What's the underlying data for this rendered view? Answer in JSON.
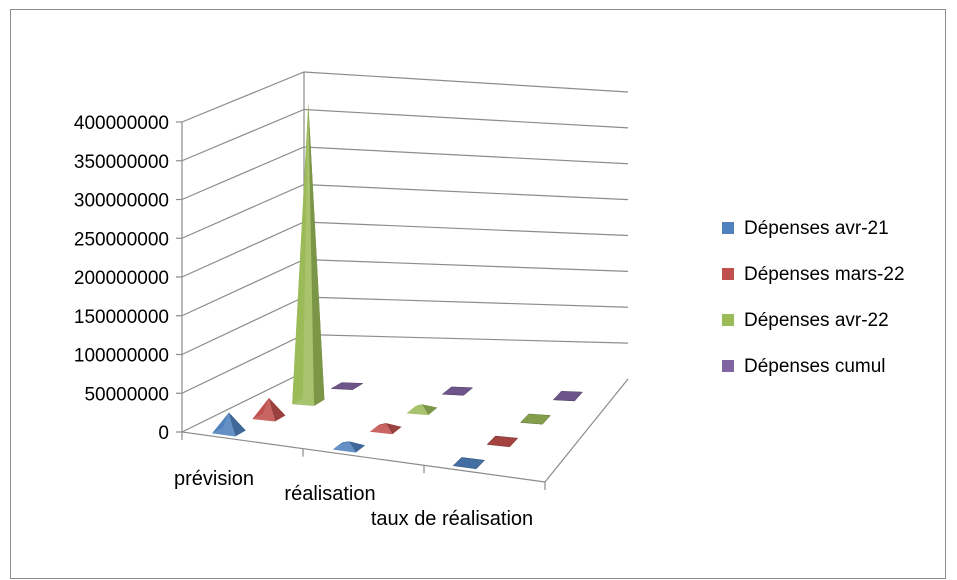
{
  "chart_data": {
    "type": "bar",
    "variant": "3d-pyramid",
    "title": "",
    "xlabel": "",
    "ylabel": "",
    "ylim": [
      0,
      400000000
    ],
    "yticks": [
      0,
      50000000,
      100000000,
      150000000,
      200000000,
      250000000,
      300000000,
      350000000,
      400000000
    ],
    "ytick_labels": [
      "0",
      "50000000",
      "100000000",
      "150000000",
      "200000000",
      "250000000",
      "300000000",
      "350000000",
      "400000000"
    ],
    "grid": true,
    "legend_position": "right",
    "categories": [
      "prévision",
      "réalisation",
      "taux de réalisation"
    ],
    "series": [
      {
        "name": "Dépenses avr-21",
        "color": "#4f81bd",
        "values": [
          25000000,
          8000000,
          1
        ]
      },
      {
        "name": "Dépenses mars-22",
        "color": "#c0504d",
        "values": [
          25000000,
          8000000,
          1
        ]
      },
      {
        "name": "Dépenses avr-22",
        "color": "#9bbb59",
        "values": [
          385000000,
          8000000,
          1
        ]
      },
      {
        "name": "Dépenses cumul",
        "color": "#8064a2",
        "values": [
          2000000,
          2000000,
          1
        ]
      }
    ]
  }
}
